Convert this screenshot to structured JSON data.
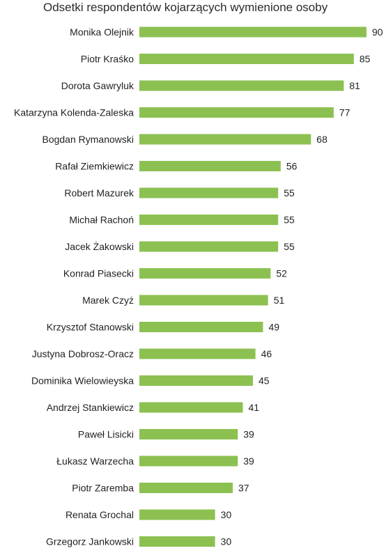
{
  "chart_data": {
    "type": "bar",
    "orientation": "horizontal",
    "title": "Odsetki respondentów kojarzących wymienione osoby",
    "categories": [
      "Monika Olejnik",
      "Piotr Kraśko",
      "Dorota Gawryluk",
      "Katarzyna Kolenda-Zaleska",
      "Bogdan Rymanowski",
      "Rafał Ziemkiewicz",
      "Robert Mazurek",
      "Michał Rachoń",
      "Jacek Żakowski",
      "Konrad Piasecki",
      "Marek Czyż",
      "Krzysztof Stanowski",
      "Justyna Dobrosz-Oracz",
      "Dominika Wielowieyska",
      "Andrzej Stankiewicz",
      "Paweł Lisicki",
      "Łukasz Warzecha",
      "Piotr Zaremba",
      "Renata Grochal",
      "Grzegorz Jankowski"
    ],
    "values": [
      90,
      85,
      81,
      77,
      68,
      56,
      55,
      55,
      55,
      52,
      51,
      49,
      46,
      45,
      41,
      39,
      39,
      37,
      30,
      30
    ],
    "xlim": [
      0,
      90
    ],
    "grid": false,
    "legend": "none",
    "bar_color": "#8cc152",
    "text_color": "#222222"
  }
}
